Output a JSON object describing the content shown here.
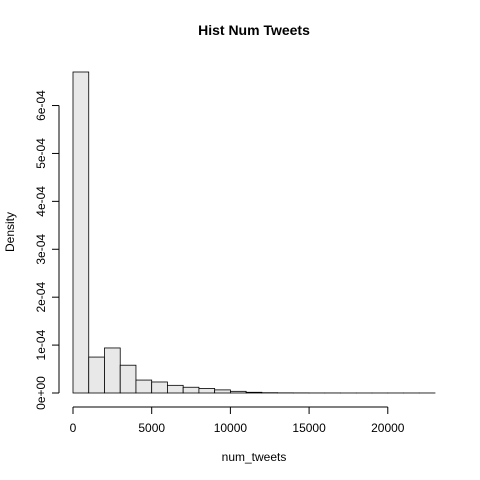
{
  "chart_data": {
    "type": "bar",
    "title": "Hist Num Tweets",
    "xlabel": "num_tweets",
    "ylabel": "Density",
    "bin_width": 1000,
    "bins": [
      {
        "start": 0,
        "end": 1000,
        "density": 0.00067
      },
      {
        "start": 1000,
        "end": 2000,
        "density": 7.5e-05
      },
      {
        "start": 2000,
        "end": 3000,
        "density": 9.4e-05
      },
      {
        "start": 3000,
        "end": 4000,
        "density": 5.8e-05
      },
      {
        "start": 4000,
        "end": 5000,
        "density": 2.7e-05
      },
      {
        "start": 5000,
        "end": 6000,
        "density": 2.3e-05
      },
      {
        "start": 6000,
        "end": 7000,
        "density": 1.6e-05
      },
      {
        "start": 7000,
        "end": 8000,
        "density": 1.2e-05
      },
      {
        "start": 8000,
        "end": 9000,
        "density": 9.5e-06
      },
      {
        "start": 9000,
        "end": 10000,
        "density": 6.5e-06
      },
      {
        "start": 10000,
        "end": 11000,
        "density": 3.5e-06
      },
      {
        "start": 11000,
        "end": 12000,
        "density": 1.5e-06
      },
      {
        "start": 12000,
        "end": 13000,
        "density": 6e-07
      },
      {
        "start": 13000,
        "end": 14000,
        "density": 3e-07
      },
      {
        "start": 14000,
        "end": 15000,
        "density": 2e-07
      },
      {
        "start": 15000,
        "end": 16000,
        "density": 1e-07
      },
      {
        "start": 16000,
        "end": 17000,
        "density": 1e-07
      },
      {
        "start": 17000,
        "end": 18000,
        "density": 5e-08
      },
      {
        "start": 18000,
        "end": 19000,
        "density": 5e-08
      },
      {
        "start": 19000,
        "end": 20000,
        "density": 5e-08
      },
      {
        "start": 20000,
        "end": 21000,
        "density": 5e-08
      },
      {
        "start": 21000,
        "end": 22000,
        "density": 5e-08
      },
      {
        "start": 22000,
        "end": 23000,
        "density": 5e-08
      }
    ],
    "xlim": [
      0,
      23000
    ],
    "ylim": [
      0,
      0.00067
    ],
    "x_ticks": [
      {
        "value": 0,
        "label": "0"
      },
      {
        "value": 5000,
        "label": "5000"
      },
      {
        "value": 10000,
        "label": "10000"
      },
      {
        "value": 15000,
        "label": "15000"
      },
      {
        "value": 20000,
        "label": "20000"
      }
    ],
    "y_ticks": [
      {
        "value": 0,
        "label": "0e+00"
      },
      {
        "value": 0.0001,
        "label": "1e-04"
      },
      {
        "value": 0.0002,
        "label": "2e-04"
      },
      {
        "value": 0.0003,
        "label": "3e-04"
      },
      {
        "value": 0.0004,
        "label": "4e-04"
      },
      {
        "value": 0.0005,
        "label": "5e-04"
      },
      {
        "value": 0.0006,
        "label": "6e-04"
      }
    ],
    "grid": false,
    "colors": {
      "bar_fill": "#e8e8e8",
      "bar_stroke": "#000000"
    }
  }
}
